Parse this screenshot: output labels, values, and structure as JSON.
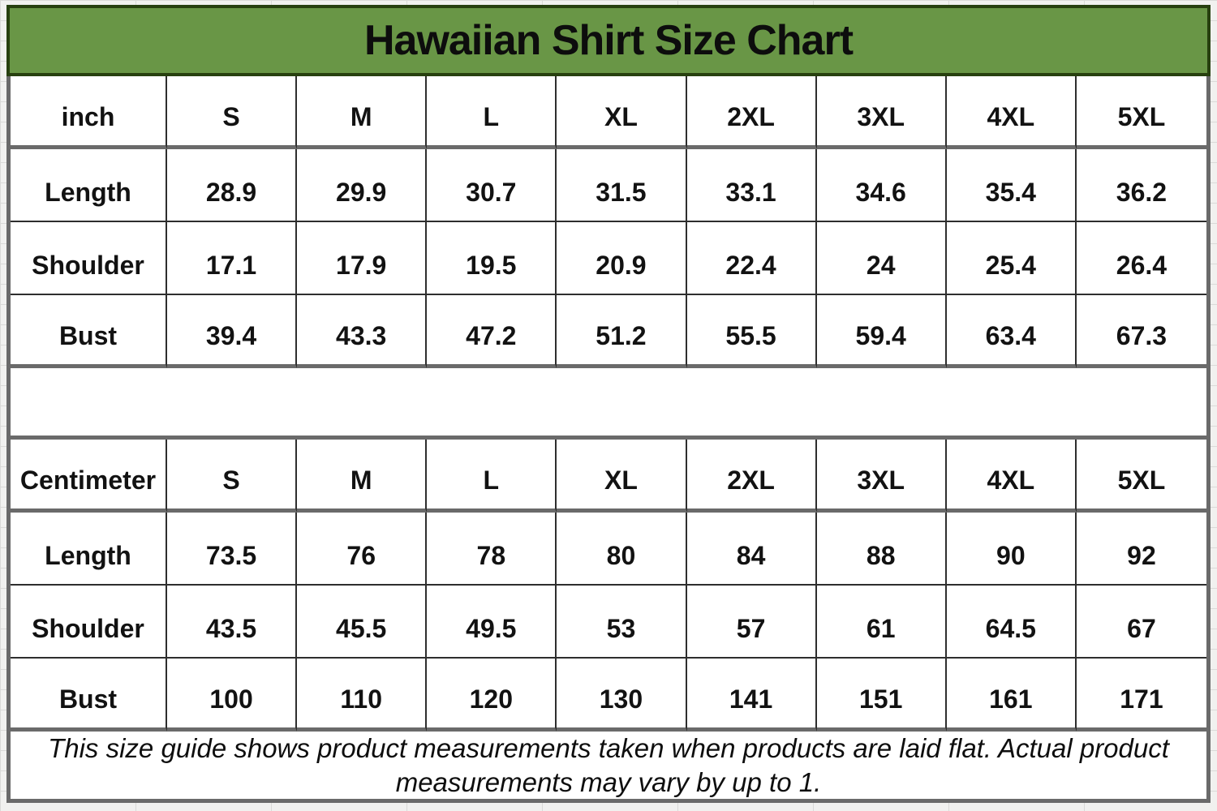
{
  "title": "Hawaiian Shirt Size Chart",
  "note": {
    "line1": "This size guide shows product measurements taken when products are laid flat. Actual product",
    "line2": "measurements may vary by up to 1."
  },
  "colors": {
    "title_bg": "#699646",
    "title_border": "#27400f",
    "thin_grid": "#2e2e2e",
    "thick_grid": "#6a6a6a",
    "page_bg": "#f1f1ef",
    "cell_bg": "#ffffff",
    "text": "#121212"
  },
  "chart_data": {
    "type": "table",
    "title": "Hawaiian Shirt Size Chart",
    "tables": [
      {
        "unit_label": "inch",
        "columns": [
          "S",
          "M",
          "L",
          "XL",
          "2XL",
          "3XL",
          "4XL",
          "5XL"
        ],
        "rows": [
          {
            "label": "Length",
            "values": [
              "28.9",
              "29.9",
              "30.7",
              "31.5",
              "33.1",
              "34.6",
              "35.4",
              "36.2"
            ]
          },
          {
            "label": "Shoulder",
            "values": [
              "17.1",
              "17.9",
              "19.5",
              "20.9",
              "22.4",
              "24",
              "25.4",
              "26.4"
            ]
          },
          {
            "label": "Bust",
            "values": [
              "39.4",
              "43.3",
              "47.2",
              "51.2",
              "55.5",
              "59.4",
              "63.4",
              "67.3"
            ]
          }
        ]
      },
      {
        "unit_label": "Centimeter",
        "columns": [
          "S",
          "M",
          "L",
          "XL",
          "2XL",
          "3XL",
          "4XL",
          "5XL"
        ],
        "rows": [
          {
            "label": "Length",
            "values": [
              "73.5",
              "76",
              "78",
              "80",
              "84",
              "88",
              "90",
              "92"
            ]
          },
          {
            "label": "Shoulder",
            "values": [
              "43.5",
              "45.5",
              "49.5",
              "53",
              "57",
              "61",
              "64.5",
              "67"
            ]
          },
          {
            "label": "Bust",
            "values": [
              "100",
              "110",
              "120",
              "130",
              "141",
              "151",
              "161",
              "171"
            ]
          }
        ]
      }
    ],
    "note": "This size guide shows product measurements taken when products are laid flat. Actual product measurements may vary by up to 1."
  }
}
